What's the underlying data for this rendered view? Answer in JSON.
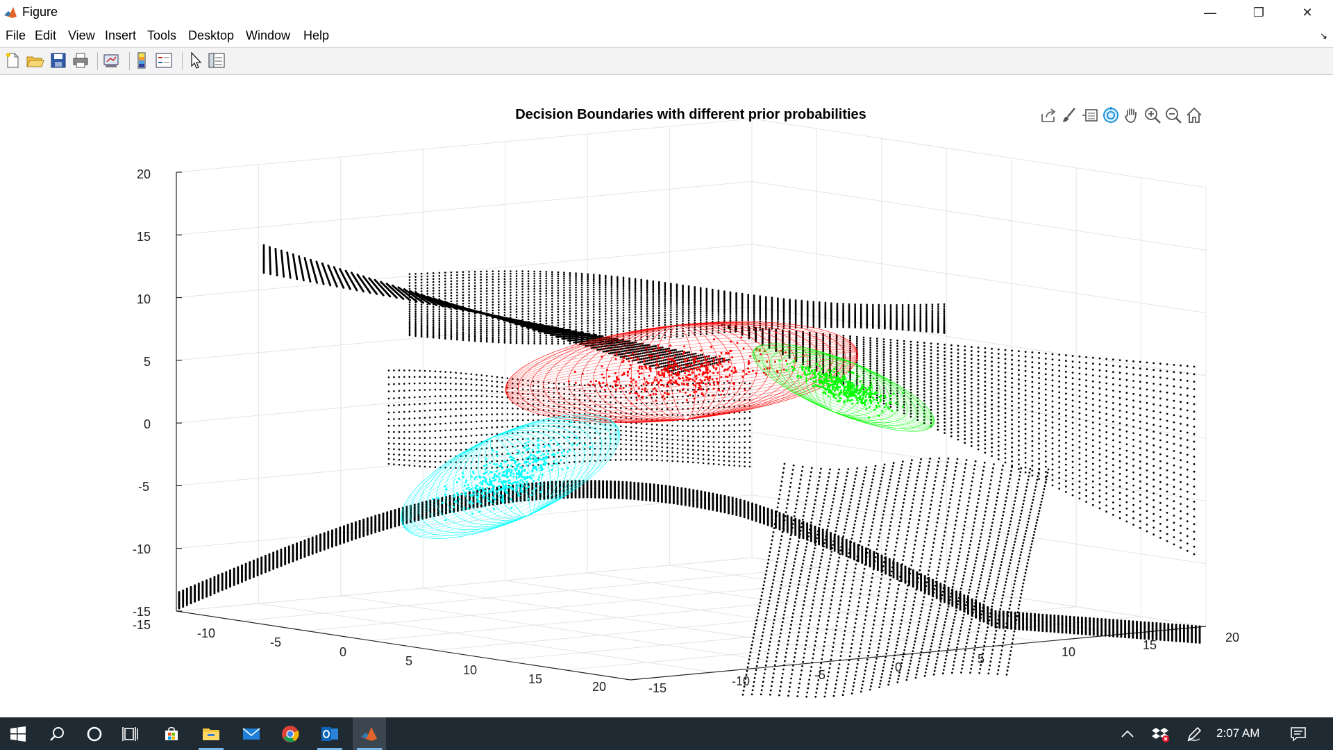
{
  "window": {
    "title": "Figure",
    "minimize_glyph": "—",
    "restore_glyph": "❐",
    "close_glyph": "✕"
  },
  "menu": {
    "items": [
      "File",
      "Edit",
      "View",
      "Insert",
      "Tools",
      "Desktop",
      "Window",
      "Help"
    ],
    "corner_glyph": "↘"
  },
  "toolbar": {
    "buttons": [
      "new-figure-icon",
      "open-file-icon",
      "save-icon",
      "print-icon",
      "link-plot-icon",
      "colorbar-icon",
      "legend-icon",
      "pointer-icon",
      "property-editor-icon"
    ]
  },
  "axes_toolbar": {
    "buttons": [
      "export-icon",
      "brush-icon",
      "data-tips-icon",
      "rotate-3d-icon",
      "pan-icon",
      "zoom-in-icon",
      "zoom-out-icon",
      "home-icon"
    ]
  },
  "chart_data": {
    "type": "scatter",
    "title": "Decision Boundaries with different prior probabilities",
    "xlabel": "",
    "ylabel": "",
    "zlabel": "",
    "xlim": [
      -15,
      20
    ],
    "ylim": [
      -15,
      20
    ],
    "zlim": [
      -15,
      20
    ],
    "x_ticks": [
      "-15",
      "-10",
      "-5",
      "0",
      "5",
      "10",
      "15",
      "20"
    ],
    "y_ticks": [
      "-15",
      "-10",
      "-5",
      "0",
      "5",
      "10",
      "15",
      "20"
    ],
    "z_ticks": [
      "-15",
      "-10",
      "-5",
      "0",
      "5",
      "10",
      "15",
      "20"
    ],
    "grid": true,
    "colors": {
      "class_1": "#ff0000",
      "class_2": "#00ff00",
      "class_3": "#00ffff",
      "boundary": "#000000"
    },
    "series": [
      {
        "color": "#ff0000",
        "approx_center": [
          2,
          -3,
          8
        ]
      },
      {
        "color": "#00ff00",
        "approx_center": [
          -7,
          12,
          2
        ]
      },
      {
        "color": "#00ffff",
        "approx_center": [
          12,
          0,
          -8
        ]
      }
    ]
  },
  "taskbar": {
    "apps": [
      "windows-start-icon",
      "search-icon",
      "cortana-icon",
      "task-view-icon",
      "store-icon",
      "file-explorer-icon",
      "mail-icon",
      "chrome-icon",
      "outlook-icon",
      "matlab-icon"
    ],
    "clock": "2:07 AM"
  }
}
